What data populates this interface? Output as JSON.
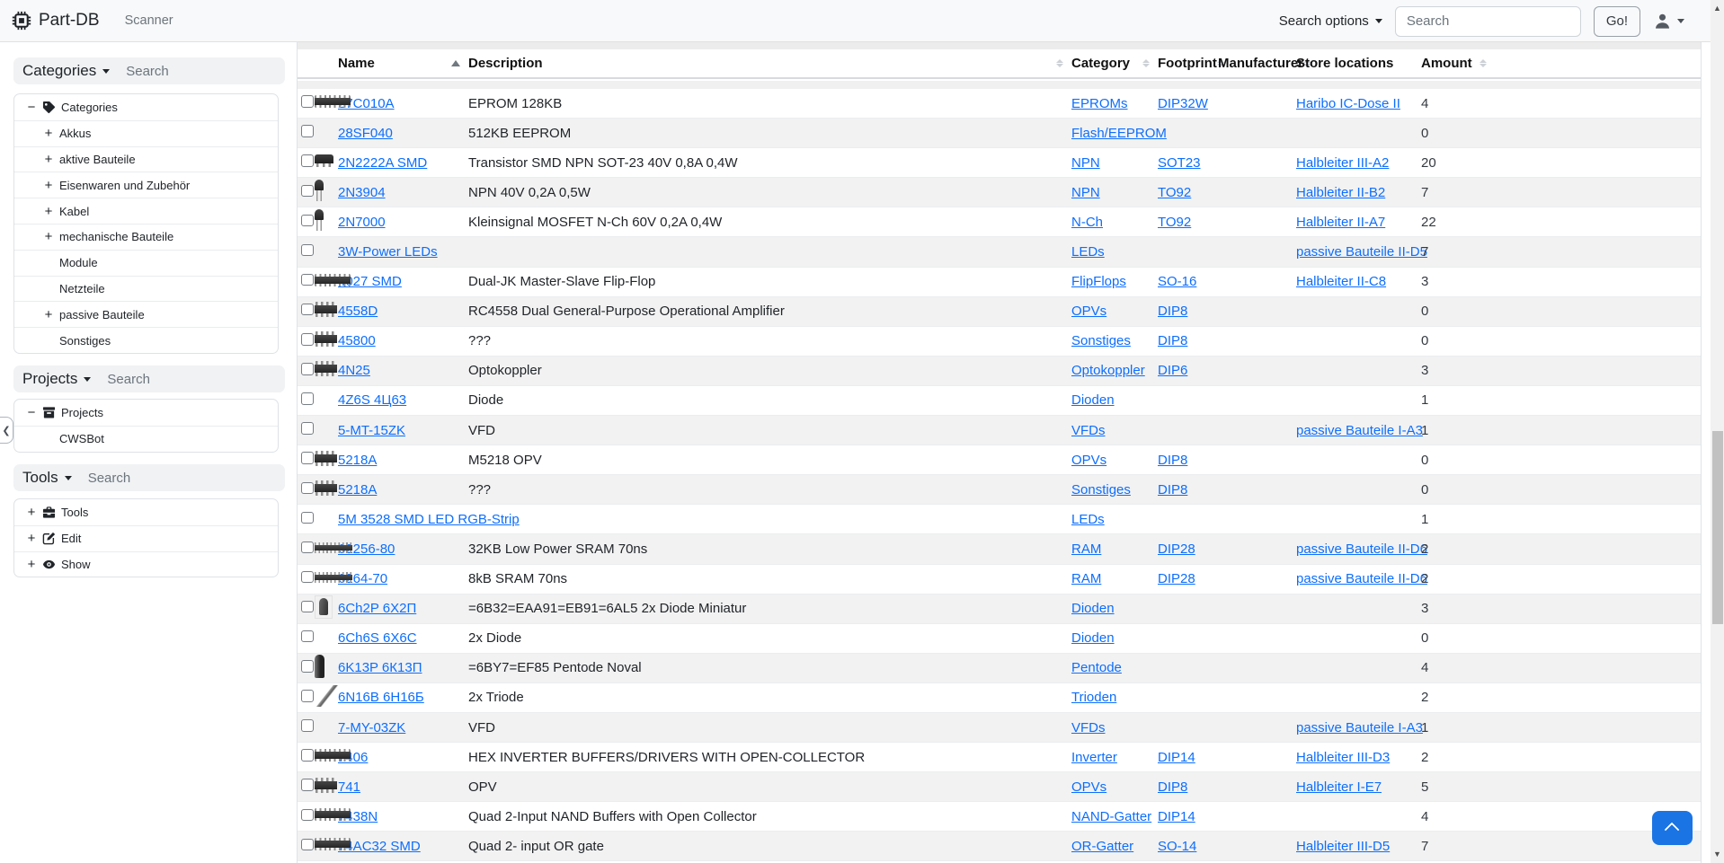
{
  "navbar": {
    "brand": "Part-DB",
    "scanner_link": "Scanner",
    "search_options_label": "Search options",
    "search_placeholder": "Search",
    "go_button": "Go!"
  },
  "sidebar": {
    "collapse_handle": "❮",
    "sections": [
      {
        "title": "Categories",
        "search_placeholder": "Search",
        "tree": [
          {
            "label": "Categories",
            "expander": "−",
            "icon": "tag",
            "level": 0
          },
          {
            "label": "Akkus",
            "expander": "+",
            "icon": "",
            "level": 1
          },
          {
            "label": "aktive Bauteile",
            "expander": "+",
            "icon": "",
            "level": 1
          },
          {
            "label": "Eisenwaren und Zubehör",
            "expander": "+",
            "icon": "",
            "level": 1
          },
          {
            "label": "Kabel",
            "expander": "+",
            "icon": "",
            "level": 1
          },
          {
            "label": "mechanische Bauteile",
            "expander": "+",
            "icon": "",
            "level": 1
          },
          {
            "label": "Module",
            "expander": "",
            "icon": "",
            "level": 1
          },
          {
            "label": "Netzteile",
            "expander": "",
            "icon": "",
            "level": 1
          },
          {
            "label": "passive Bauteile",
            "expander": "+",
            "icon": "",
            "level": 1
          },
          {
            "label": "Sonstiges",
            "expander": "",
            "icon": "",
            "level": 1
          }
        ]
      },
      {
        "title": "Projects",
        "search_placeholder": "Search",
        "tree": [
          {
            "label": "Projects",
            "expander": "−",
            "icon": "archive",
            "level": 0
          },
          {
            "label": "CWSBot",
            "expander": "",
            "icon": "",
            "level": 1
          }
        ]
      },
      {
        "title": "Tools",
        "search_placeholder": "Search",
        "tree": [
          {
            "label": "Tools",
            "expander": "+",
            "icon": "toolbox",
            "level": 0
          },
          {
            "label": "Edit",
            "expander": "+",
            "icon": "edit",
            "level": 0
          },
          {
            "label": "Show",
            "expander": "+",
            "icon": "eye",
            "level": 0
          }
        ]
      }
    ]
  },
  "table": {
    "columns": [
      {
        "label": "Name",
        "sort": "asc"
      },
      {
        "label": "Description",
        "sort": "both"
      },
      {
        "label": "Category",
        "sort": "both"
      },
      {
        "label": "Footprint",
        "sort": "both"
      },
      {
        "label": "Manufacturer",
        "sort": "both"
      },
      {
        "label": "Store locations",
        "sort": "none"
      },
      {
        "label": "Amount",
        "sort": "both-inline"
      }
    ],
    "rows": [
      {
        "name": "27C010A",
        "description": "EPROM 128KB",
        "category": "EPROMs",
        "footprint": "DIP32W",
        "manufacturer": "",
        "store_location": "Haribo IC-Dose II",
        "amount": "4",
        "thumb": "dip"
      },
      {
        "name": "28SF040",
        "description": "512KB EEPROM",
        "category": "Flash/EEPROM",
        "footprint": "",
        "manufacturer": "",
        "store_location": "",
        "amount": "0",
        "thumb": ""
      },
      {
        "name": "2N2222A SMD",
        "description": "Transistor SMD NPN SOT-23 40V 0,8A 0,4W",
        "category": "NPN",
        "footprint": "SOT23",
        "manufacturer": "",
        "store_location": "Halbleiter III-A2",
        "amount": "20",
        "thumb": "sot23"
      },
      {
        "name": "2N3904",
        "description": "NPN 40V 0,2A 0,5W",
        "category": "NPN",
        "footprint": "TO92",
        "manufacturer": "",
        "store_location": "Halbleiter II-B2",
        "amount": "7",
        "thumb": "to92"
      },
      {
        "name": "2N7000",
        "description": "Kleinsignal MOSFET N-Ch 60V 0,2A 0,4W",
        "category": "N-Ch",
        "footprint": "TO92",
        "manufacturer": "",
        "store_location": "Halbleiter II-A7",
        "amount": "22",
        "thumb": "to92"
      },
      {
        "name": "3W-Power LEDs",
        "description": "",
        "category": "LEDs",
        "footprint": "",
        "manufacturer": "",
        "store_location": "passive Bauteile II-D5",
        "amount": "7",
        "thumb": ""
      },
      {
        "name": "4027 SMD",
        "description": "Dual-JK Master-Slave Flip-Flop",
        "category": "FlipFlops",
        "footprint": "SO-16",
        "manufacturer": "",
        "store_location": "Halbleiter II-C8",
        "amount": "3",
        "thumb": "dip"
      },
      {
        "name": "4558D",
        "description": "RC4558 Dual General-Purpose Operational Amplifier",
        "category": "OPVs",
        "footprint": "DIP8",
        "manufacturer": "",
        "store_location": "",
        "amount": "0",
        "thumb": "dip8"
      },
      {
        "name": "45800",
        "description": "???",
        "category": "Sonstiges",
        "footprint": "DIP8",
        "manufacturer": "",
        "store_location": "",
        "amount": "0",
        "thumb": "dip8"
      },
      {
        "name": "4N25",
        "description": "Optokoppler",
        "category": "Optokoppler",
        "footprint": "DIP6",
        "manufacturer": "",
        "store_location": "",
        "amount": "3",
        "thumb": "dip8"
      },
      {
        "name": "4Z6S 4Ц63",
        "description": "Diode",
        "category": "Dioden",
        "footprint": "",
        "manufacturer": "",
        "store_location": "",
        "amount": "1",
        "thumb": ""
      },
      {
        "name": "5-MT-15ZK",
        "description": "VFD",
        "category": "VFDs",
        "footprint": "",
        "manufacturer": "",
        "store_location": "passive Bauteile I-A3",
        "amount": "1",
        "thumb": ""
      },
      {
        "name": "5218A",
        "description": "M5218 OPV",
        "category": "OPVs",
        "footprint": "DIP8",
        "manufacturer": "",
        "store_location": "",
        "amount": "0",
        "thumb": "dip8"
      },
      {
        "name": "5218A",
        "description": "???",
        "category": "Sonstiges",
        "footprint": "DIP8",
        "manufacturer": "",
        "store_location": "",
        "amount": "0",
        "thumb": "dip8"
      },
      {
        "name": "5M 3528 SMD LED RGB-Strip",
        "description": "",
        "category": "LEDs",
        "footprint": "",
        "manufacturer": "",
        "store_location": "",
        "amount": "1",
        "thumb": ""
      },
      {
        "name": "62256-80",
        "description": "32KB Low Power SRAM 70ns",
        "category": "RAM",
        "footprint": "DIP28",
        "manufacturer": "",
        "store_location": "passive Bauteile II-D6",
        "amount": "2",
        "thumb": "dipn"
      },
      {
        "name": "6264-70",
        "description": "8kB SRAM 70ns",
        "category": "RAM",
        "footprint": "DIP28",
        "manufacturer": "",
        "store_location": "passive Bauteile II-D6",
        "amount": "2",
        "thumb": "dipn"
      },
      {
        "name": "6Ch2P 6Х2П",
        "description": "=6B32=EAA91=EB91=6AL5 2x Diode Miniatur",
        "category": "Dioden",
        "footprint": "",
        "manufacturer": "",
        "store_location": "",
        "amount": "3",
        "thumb": "tube"
      },
      {
        "name": "6Ch6S 6Х6С",
        "description": "2x Diode",
        "category": "Dioden",
        "footprint": "",
        "manufacturer": "",
        "store_location": "",
        "amount": "0",
        "thumb": ""
      },
      {
        "name": "6K13P 6К13П",
        "description": "=6BY7=EF85 Pentode Noval",
        "category": "Pentode",
        "footprint": "",
        "manufacturer": "",
        "store_location": "",
        "amount": "4",
        "thumb": "tubev"
      },
      {
        "name": "6N16B 6Н16Б",
        "description": "2x Triode",
        "category": "Trioden",
        "footprint": "",
        "manufacturer": "",
        "store_location": "",
        "amount": "2",
        "thumb": "tubed"
      },
      {
        "name": "7-MY-03ZK",
        "description": "VFD",
        "category": "VFDs",
        "footprint": "",
        "manufacturer": "",
        "store_location": "passive Bauteile I-A3",
        "amount": "1",
        "thumb": ""
      },
      {
        "name": "7406",
        "description": "HEX INVERTER BUFFERS/DRIVERS WITH OPEN-COLLECTOR",
        "category": "Inverter",
        "footprint": "DIP14",
        "manufacturer": "",
        "store_location": "Halbleiter III-D3",
        "amount": "2",
        "thumb": "dip"
      },
      {
        "name": "741",
        "description": "OPV",
        "category": "OPVs",
        "footprint": "DIP8",
        "manufacturer": "",
        "store_location": "Halbleiter I-E7",
        "amount": "5",
        "thumb": "dip8"
      },
      {
        "name": "7438N",
        "description": "Quad 2-Input NAND Buffers with Open Collector",
        "category": "NAND-Gatter",
        "footprint": "DIP14",
        "manufacturer": "",
        "store_location": "",
        "amount": "4",
        "thumb": "dip"
      },
      {
        "name": "74AC32 SMD",
        "description": "Quad 2- input OR gate",
        "category": "OR-Gatter",
        "footprint": "SO-14",
        "manufacturer": "",
        "store_location": "Halbleiter III-D5",
        "amount": "7",
        "thumb": "dip"
      }
    ]
  },
  "colors": {
    "link": "#0d6efd",
    "stripe": "#f2f2f2",
    "primary_button": "#1b74e4",
    "navbar_bg": "#f8f9fa"
  },
  "icons": [
    "cpu-icon",
    "tag-icon",
    "archive-icon",
    "toolbox-icon",
    "edit-icon",
    "eye-icon",
    "person-icon",
    "chevron-up-icon",
    "caret-down-icon",
    "sort-asc-icon",
    "sort-both-icon"
  ]
}
